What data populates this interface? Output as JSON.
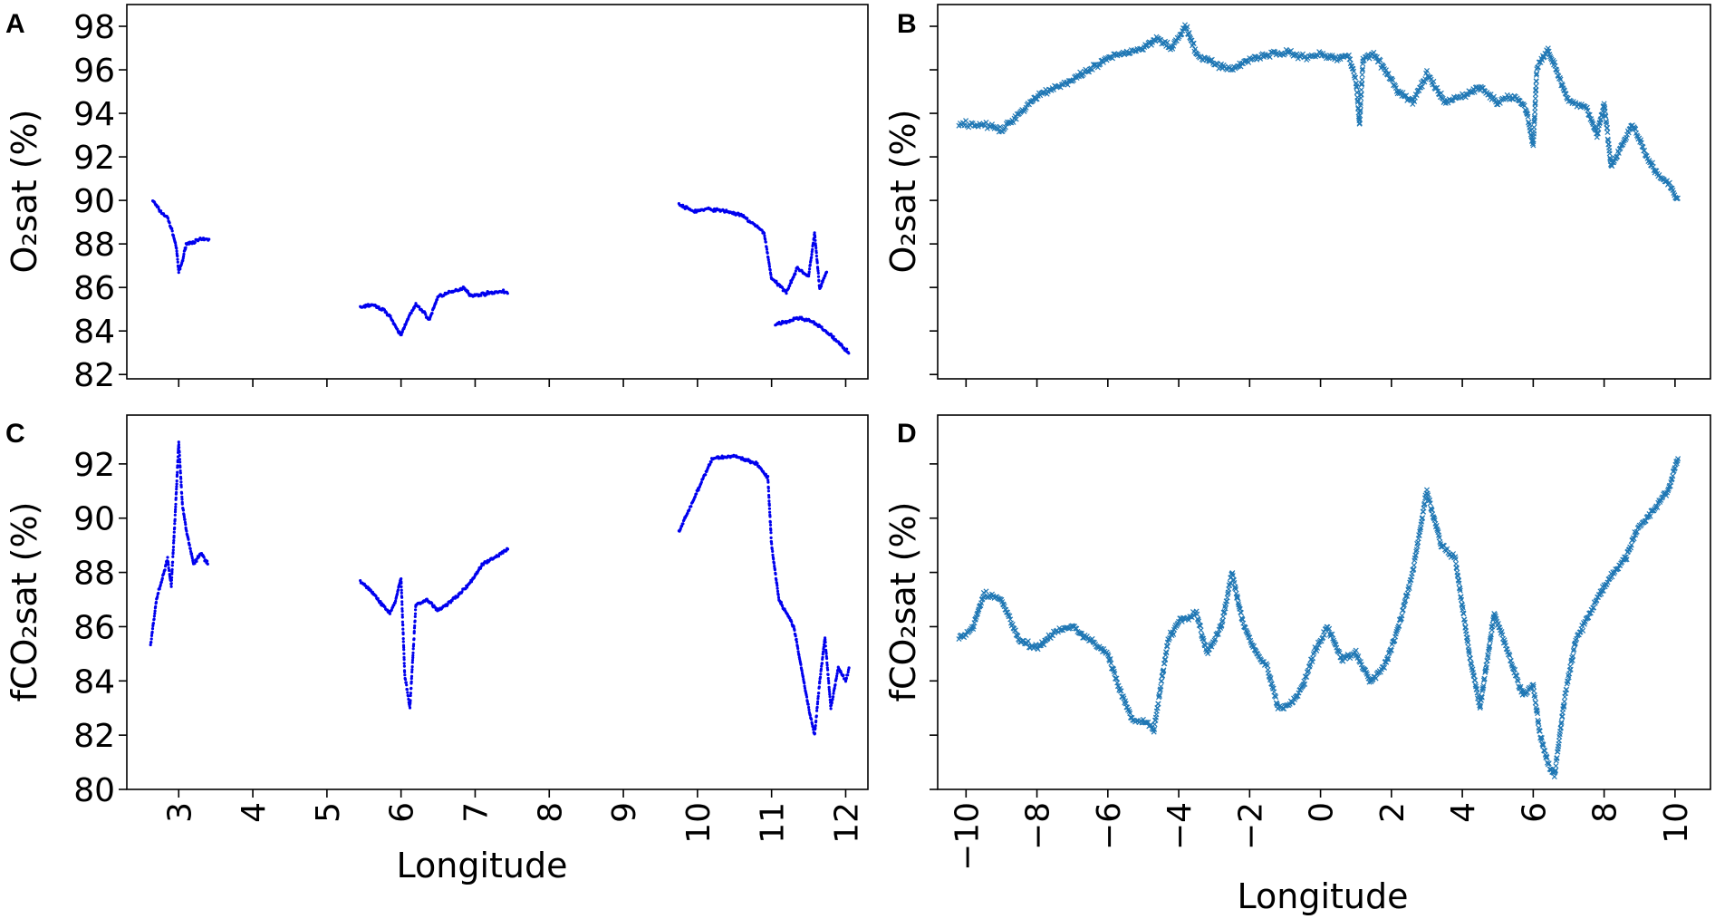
{
  "figure": {
    "x_label": "Longitude",
    "colors": {
      "left_series": "#0000ee",
      "right_series": "#1f77b4",
      "axes": "#000000"
    }
  },
  "chart_data": [
    {
      "panel": "A",
      "type": "scatter",
      "marker": "dot",
      "ylabel": "O₂sat (%)",
      "xlabel": "",
      "xlim": [
        2.3,
        12.3
      ],
      "ylim": [
        81.8,
        99
      ],
      "xticks": [
        3,
        4,
        5,
        6,
        7,
        8,
        9,
        10,
        11,
        12
      ],
      "xtick_labels_shown": false,
      "yticks": [
        82,
        84,
        86,
        88,
        90,
        92,
        94,
        96,
        98
      ],
      "ytick_labels": [
        "82",
        "84",
        "86",
        "88",
        "90",
        "92",
        "94",
        "96",
        "98"
      ],
      "trace": [
        [
          2.65,
          90.0
        ],
        [
          2.75,
          89.5
        ],
        [
          2.85,
          89.2
        ],
        [
          2.92,
          88.5
        ],
        [
          2.97,
          87.8
        ],
        [
          3.0,
          86.7
        ],
        [
          3.05,
          87.2
        ],
        [
          3.1,
          88.0
        ],
        [
          3.2,
          88.1
        ],
        [
          3.3,
          88.2
        ],
        [
          3.42,
          88.2
        ],
        null,
        [
          5.45,
          85.1
        ],
        [
          5.6,
          85.2
        ],
        [
          5.75,
          85.0
        ],
        [
          5.85,
          84.7
        ],
        [
          5.92,
          84.2
        ],
        [
          6.0,
          83.8
        ],
        [
          6.08,
          84.5
        ],
        [
          6.2,
          85.2
        ],
        [
          6.3,
          84.9
        ],
        [
          6.38,
          84.5
        ],
        [
          6.5,
          85.6
        ],
        [
          6.7,
          85.8
        ],
        [
          6.85,
          86.0
        ],
        [
          6.95,
          85.6
        ],
        [
          7.1,
          85.7
        ],
        [
          7.3,
          85.8
        ],
        [
          7.45,
          85.8
        ],
        null,
        [
          9.75,
          89.8
        ],
        [
          9.95,
          89.5
        ],
        [
          10.15,
          89.6
        ],
        [
          10.4,
          89.5
        ],
        [
          10.6,
          89.3
        ],
        [
          10.8,
          88.8
        ],
        [
          10.9,
          88.5
        ],
        [
          11.0,
          86.4
        ],
        [
          11.1,
          86.1
        ],
        [
          11.2,
          85.8
        ],
        [
          11.35,
          86.9
        ],
        [
          11.5,
          86.5
        ],
        [
          11.58,
          88.5
        ],
        [
          11.65,
          85.9
        ],
        [
          11.75,
          86.8
        ],
        null,
        [
          11.05,
          84.3
        ],
        [
          11.2,
          84.4
        ],
        [
          11.35,
          84.6
        ],
        [
          11.5,
          84.5
        ],
        [
          11.65,
          84.2
        ],
        [
          11.8,
          83.8
        ],
        [
          11.95,
          83.3
        ],
        [
          12.05,
          83.0
        ]
      ]
    },
    {
      "panel": "B",
      "type": "scatter",
      "marker": "x",
      "ylabel": "O₂sat (%)",
      "xlabel": "",
      "xlim": [
        -10.8,
        11.0
      ],
      "ylim": [
        81.8,
        99
      ],
      "xticks": [
        -10,
        -8,
        -6,
        -4,
        -2,
        0,
        2,
        4,
        6,
        8,
        10
      ],
      "xtick_labels_shown": false,
      "yticks": [
        82,
        84,
        86,
        88,
        90,
        92,
        94,
        96,
        98
      ],
      "ytick_labels_shown": false,
      "trace": [
        [
          -10.2,
          93.5
        ],
        [
          -9.5,
          93.5
        ],
        [
          -9.0,
          93.2
        ],
        [
          -8.5,
          94.0
        ],
        [
          -8.0,
          94.8
        ],
        [
          -7.5,
          95.2
        ],
        [
          -7.0,
          95.5
        ],
        [
          -6.5,
          96.0
        ],
        [
          -6.0,
          96.5
        ],
        [
          -5.5,
          96.8
        ],
        [
          -5.0,
          97.0
        ],
        [
          -4.6,
          97.5
        ],
        [
          -4.2,
          97.0
        ],
        [
          -3.8,
          98.0
        ],
        [
          -3.5,
          96.7
        ],
        [
          -3.0,
          96.3
        ],
        [
          -2.5,
          96.0
        ],
        [
          -2.0,
          96.5
        ],
        [
          -1.5,
          96.7
        ],
        [
          -1.0,
          96.8
        ],
        [
          -0.5,
          96.6
        ],
        [
          0.0,
          96.7
        ],
        [
          0.5,
          96.5
        ],
        [
          0.8,
          96.7
        ],
        [
          1.0,
          95.5
        ],
        [
          1.1,
          93.5
        ],
        [
          1.2,
          96.5
        ],
        [
          1.5,
          96.8
        ],
        [
          1.8,
          96.0
        ],
        [
          2.2,
          95.0
        ],
        [
          2.6,
          94.5
        ],
        [
          3.0,
          95.8
        ],
        [
          3.5,
          94.5
        ],
        [
          4.0,
          94.8
        ],
        [
          4.5,
          95.2
        ],
        [
          5.0,
          94.5
        ],
        [
          5.5,
          94.8
        ],
        [
          5.8,
          94.2
        ],
        [
          6.0,
          92.5
        ],
        [
          6.1,
          96.0
        ],
        [
          6.4,
          97.0
        ],
        [
          6.6,
          96.2
        ],
        [
          7.0,
          94.5
        ],
        [
          7.5,
          94.3
        ],
        [
          7.8,
          93.0
        ],
        [
          8.0,
          94.5
        ],
        [
          8.2,
          91.5
        ],
        [
          8.5,
          92.5
        ],
        [
          8.8,
          93.5
        ],
        [
          9.2,
          92.0
        ],
        [
          9.5,
          91.2
        ],
        [
          9.8,
          90.8
        ],
        [
          10.1,
          90.0
        ]
      ]
    },
    {
      "panel": "C",
      "type": "scatter",
      "marker": "dot",
      "ylabel": "fCO₂sat (%)",
      "xlabel": "Longitude",
      "xlim": [
        2.3,
        12.3
      ],
      "ylim": [
        80,
        93.8
      ],
      "xticks": [
        3,
        4,
        5,
        6,
        7,
        8,
        9,
        10,
        11,
        12
      ],
      "xtick_labels": [
        "3",
        "4",
        "5",
        "6",
        "7",
        "8",
        "9",
        "10",
        "11",
        "12"
      ],
      "yticks": [
        80,
        82,
        84,
        86,
        88,
        90,
        92
      ],
      "ytick_labels": [
        "80",
        "82",
        "84",
        "86",
        "88",
        "90",
        "92"
      ],
      "trace": [
        [
          2.62,
          85.3
        ],
        [
          2.7,
          87.0
        ],
        [
          2.78,
          87.8
        ],
        [
          2.85,
          88.5
        ],
        [
          2.9,
          87.5
        ],
        [
          2.95,
          90.0
        ],
        [
          3.0,
          92.8
        ],
        [
          3.05,
          90.5
        ],
        [
          3.1,
          89.6
        ],
        [
          3.2,
          88.3
        ],
        [
          3.3,
          88.7
        ],
        [
          3.4,
          88.3
        ],
        null,
        [
          5.45,
          87.7
        ],
        [
          5.6,
          87.3
        ],
        [
          5.75,
          86.8
        ],
        [
          5.85,
          86.5
        ],
        [
          5.92,
          86.9
        ],
        [
          6.0,
          87.8
        ],
        [
          6.05,
          84.2
        ],
        [
          6.12,
          83.0
        ],
        [
          6.2,
          86.8
        ],
        [
          6.35,
          87.0
        ],
        [
          6.5,
          86.6
        ],
        [
          6.7,
          87.0
        ],
        [
          6.9,
          87.5
        ],
        [
          7.1,
          88.3
        ],
        [
          7.3,
          88.6
        ],
        [
          7.45,
          88.9
        ],
        null,
        [
          9.75,
          89.5
        ],
        [
          10.0,
          91.0
        ],
        [
          10.2,
          92.2
        ],
        [
          10.5,
          92.3
        ],
        [
          10.8,
          92.0
        ],
        [
          10.95,
          91.5
        ],
        [
          11.0,
          89.0
        ],
        [
          11.1,
          87.0
        ],
        [
          11.2,
          86.5
        ],
        [
          11.3,
          86.0
        ],
        [
          11.4,
          84.5
        ],
        [
          11.5,
          83.0
        ],
        [
          11.58,
          82.0
        ],
        [
          11.65,
          84.0
        ],
        [
          11.72,
          85.6
        ],
        [
          11.8,
          83.0
        ],
        [
          11.9,
          84.5
        ],
        [
          12.0,
          84.0
        ],
        [
          12.05,
          84.5
        ]
      ]
    },
    {
      "panel": "D",
      "type": "scatter",
      "marker": "x",
      "ylabel": "fCO₂sat (%)",
      "xlabel": "Longitude",
      "xlim": [
        -10.8,
        11.0
      ],
      "ylim": [
        80,
        93.8
      ],
      "xticks": [
        -10,
        -8,
        -6,
        -4,
        -2,
        0,
        2,
        4,
        6,
        8,
        10
      ],
      "xtick_labels": [
        "−10",
        "−8",
        "−6",
        "−4",
        "−2",
        "0",
        "2",
        "4",
        "6",
        "8",
        "10"
      ],
      "yticks": [
        80,
        82,
        84,
        86,
        88,
        90,
        92
      ],
      "ytick_labels_shown": false,
      "trace": [
        [
          -10.2,
          85.5
        ],
        [
          -9.8,
          86.0
        ],
        [
          -9.5,
          87.2
        ],
        [
          -9.0,
          87.0
        ],
        [
          -8.5,
          85.5
        ],
        [
          -8.0,
          85.2
        ],
        [
          -7.5,
          85.8
        ],
        [
          -7.0,
          86.0
        ],
        [
          -6.5,
          85.5
        ],
        [
          -6.0,
          85.0
        ],
        [
          -5.7,
          83.8
        ],
        [
          -5.3,
          82.5
        ],
        [
          -5.0,
          82.5
        ],
        [
          -4.7,
          82.2
        ],
        [
          -4.3,
          85.5
        ],
        [
          -4.0,
          86.2
        ],
        [
          -3.5,
          86.5
        ],
        [
          -3.2,
          85.0
        ],
        [
          -2.8,
          86.0
        ],
        [
          -2.5,
          88.0
        ],
        [
          -2.2,
          86.2
        ],
        [
          -1.8,
          85.0
        ],
        [
          -1.5,
          84.5
        ],
        [
          -1.2,
          83.0
        ],
        [
          -0.8,
          83.2
        ],
        [
          -0.5,
          83.8
        ],
        [
          -0.2,
          85.0
        ],
        [
          0.2,
          86.0
        ],
        [
          0.6,
          84.8
        ],
        [
          1.0,
          85.0
        ],
        [
          1.4,
          84.0
        ],
        [
          1.8,
          84.5
        ],
        [
          2.2,
          86.0
        ],
        [
          2.6,
          88.0
        ],
        [
          3.0,
          91.0
        ],
        [
          3.4,
          89.0
        ],
        [
          3.8,
          88.5
        ],
        [
          4.2,
          85.0
        ],
        [
          4.5,
          83.0
        ],
        [
          4.9,
          86.5
        ],
        [
          5.3,
          85.0
        ],
        [
          5.7,
          83.5
        ],
        [
          6.0,
          83.8
        ],
        [
          6.2,
          82.0
        ],
        [
          6.4,
          81.0
        ],
        [
          6.6,
          80.5
        ],
        [
          6.9,
          83.5
        ],
        [
          7.2,
          85.5
        ],
        [
          7.6,
          86.5
        ],
        [
          8.0,
          87.5
        ],
        [
          8.3,
          88.0
        ],
        [
          8.6,
          88.5
        ],
        [
          8.9,
          89.5
        ],
        [
          9.2,
          90.0
        ],
        [
          9.5,
          90.5
        ],
        [
          9.8,
          91.0
        ],
        [
          10.1,
          92.3
        ]
      ]
    }
  ]
}
